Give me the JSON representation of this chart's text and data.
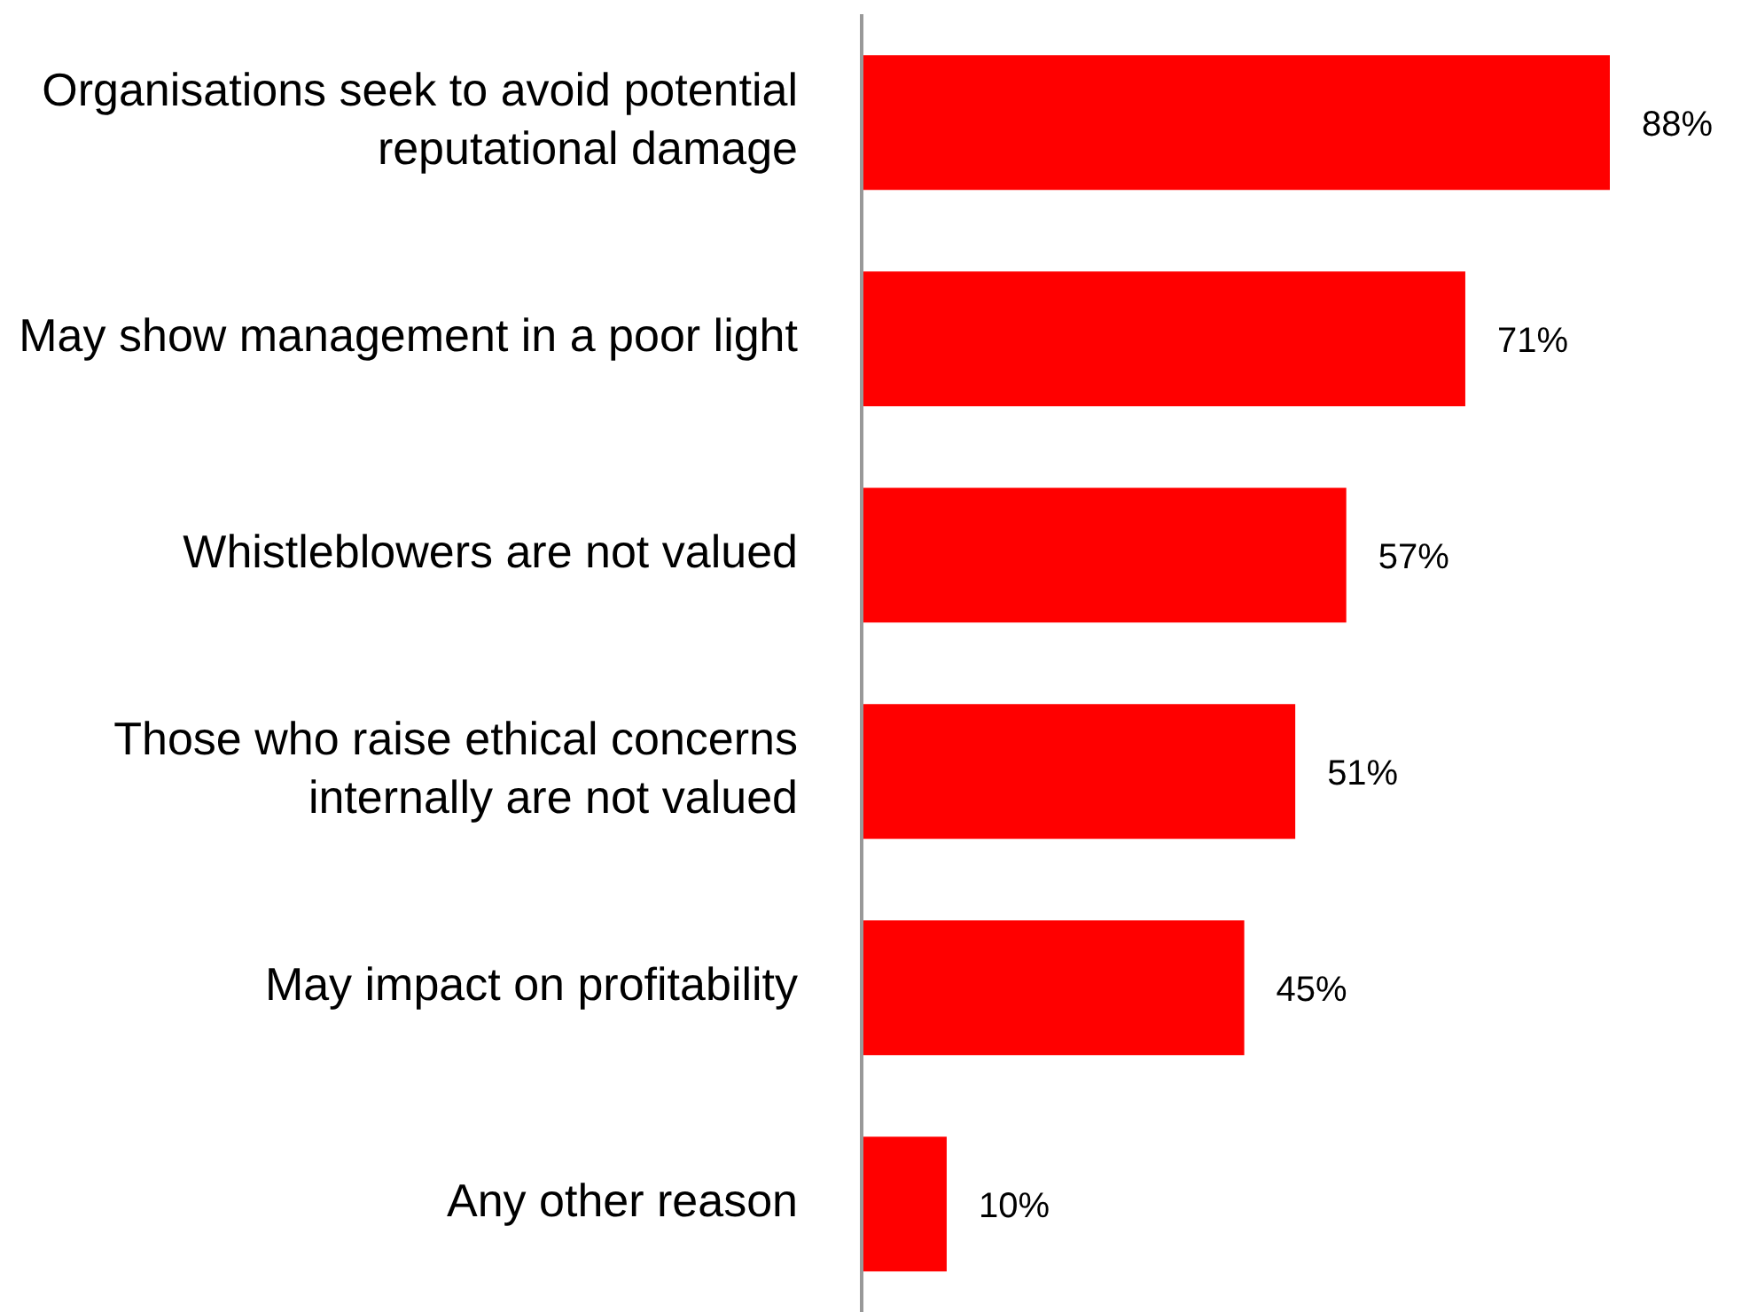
{
  "chart_data": {
    "type": "bar",
    "orientation": "horizontal",
    "categories": [
      "Organisations seek to avoid potential reputational damage",
      "May show management in a poor light",
      "Whistleblowers are not valued",
      "Those who raise ethical concerns internally are not valued",
      "May impact on profitability",
      "Any other reason"
    ],
    "values": [
      88,
      71,
      57,
      51,
      45,
      10
    ],
    "value_labels": [
      "88%",
      "71%",
      "57%",
      "51%",
      "45%",
      "10%"
    ],
    "color": "#ff0000",
    "tick_labels": "y",
    "grid": false,
    "legend": false
  }
}
